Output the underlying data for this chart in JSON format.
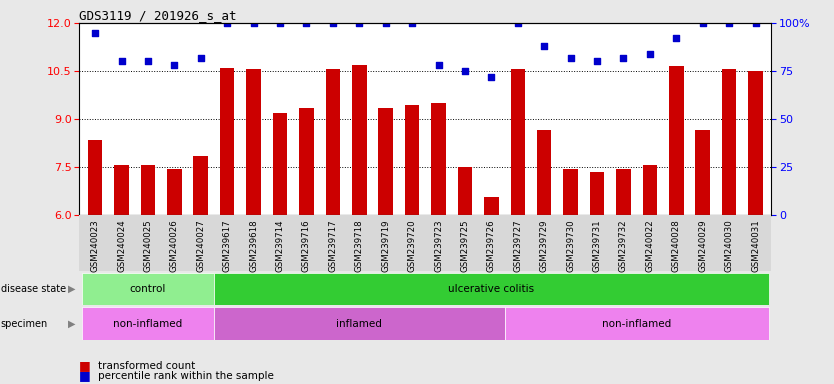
{
  "title": "GDS3119 / 201926_s_at",
  "samples": [
    "GSM240023",
    "GSM240024",
    "GSM240025",
    "GSM240026",
    "GSM240027",
    "GSM239617",
    "GSM239618",
    "GSM239714",
    "GSM239716",
    "GSM239717",
    "GSM239718",
    "GSM239719",
    "GSM239720",
    "GSM239723",
    "GSM239725",
    "GSM239726",
    "GSM239727",
    "GSM239729",
    "GSM239730",
    "GSM239731",
    "GSM239732",
    "GSM240022",
    "GSM240028",
    "GSM240029",
    "GSM240030",
    "GSM240031"
  ],
  "bar_values": [
    8.35,
    7.55,
    7.55,
    7.45,
    7.85,
    10.6,
    10.55,
    9.2,
    9.35,
    10.55,
    10.7,
    9.35,
    9.45,
    9.5,
    7.5,
    6.55,
    10.55,
    8.65,
    7.45,
    7.35,
    7.45,
    7.55,
    10.65,
    8.65,
    10.55,
    10.5
  ],
  "dot_values": [
    95,
    80,
    80,
    78,
    82,
    100,
    100,
    100,
    100,
    100,
    100,
    100,
    100,
    78,
    75,
    72,
    100,
    88,
    82,
    80,
    82,
    84,
    92,
    100,
    100,
    100
  ],
  "ylim_left": [
    6,
    12
  ],
  "ylim_right": [
    0,
    100
  ],
  "yticks_left": [
    6,
    7.5,
    9,
    10.5,
    12
  ],
  "yticks_right": [
    0,
    25,
    50,
    75,
    100
  ],
  "bar_color": "#cc0000",
  "dot_color": "#0000cc",
  "bar_bottom": 6,
  "disease_state_groups": [
    {
      "label": "control",
      "start": 0,
      "end": 5,
      "color": "#90ee90"
    },
    {
      "label": "ulcerative colitis",
      "start": 5,
      "end": 26,
      "color": "#33cc33"
    }
  ],
  "specimen_groups": [
    {
      "label": "non-inflamed",
      "start": 0,
      "end": 5,
      "color": "#ee82ee"
    },
    {
      "label": "inflamed",
      "start": 5,
      "end": 16,
      "color": "#cc66cc"
    },
    {
      "label": "non-inflamed",
      "start": 16,
      "end": 26,
      "color": "#ee82ee"
    }
  ],
  "background_color": "#e8e8e8",
  "plot_bg_color": "#ffffff",
  "xtick_bg_color": "#d8d8d8"
}
